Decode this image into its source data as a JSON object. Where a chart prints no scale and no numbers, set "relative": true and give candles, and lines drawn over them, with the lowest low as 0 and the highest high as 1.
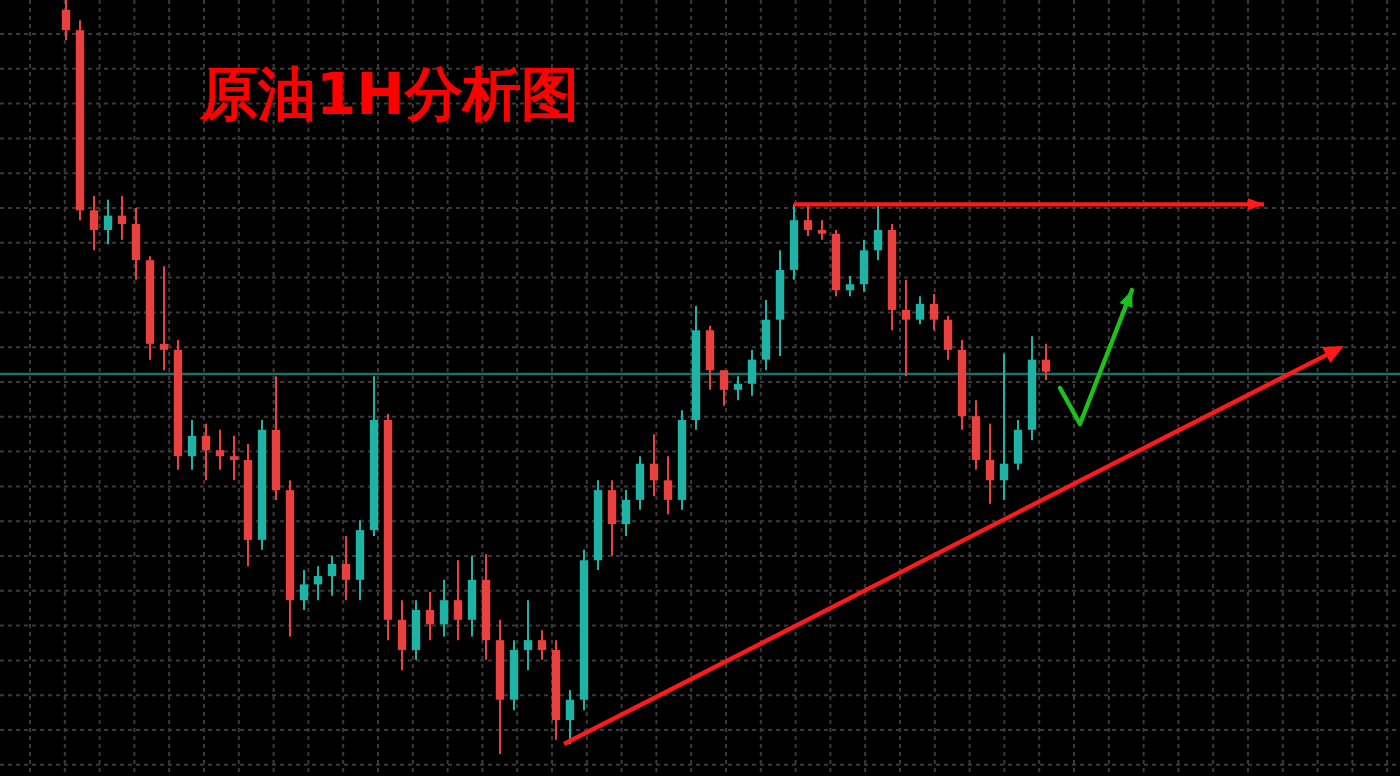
{
  "chart_data": {
    "type": "candlestick",
    "title": "原油1H分析图",
    "relative": true,
    "grid": true,
    "categories": [
      null,
      null,
      null,
      null,
      null,
      null,
      null,
      null,
      null,
      null,
      null,
      null,
      null,
      null,
      null,
      null,
      null,
      null,
      null,
      null,
      null,
      null,
      null,
      null,
      null,
      null,
      null,
      null,
      null,
      null,
      null,
      null,
      null,
      null,
      null,
      null,
      null,
      null,
      null,
      null,
      null,
      null,
      null,
      null,
      null,
      null,
      null,
      null,
      null,
      null,
      null,
      null,
      null,
      null,
      null,
      null,
      null,
      null,
      null,
      null,
      null,
      null,
      null,
      null,
      null,
      null,
      null,
      null,
      null,
      null,
      null
    ],
    "ohlc": [
      [
        0.987,
        1.0,
        0.947,
        0.96
      ],
      [
        0.96,
        0.973,
        0.708,
        0.721
      ],
      [
        0.721,
        0.74,
        0.668,
        0.695
      ],
      [
        0.695,
        0.735,
        0.676,
        0.714
      ],
      [
        0.714,
        0.74,
        0.682,
        0.703
      ],
      [
        0.703,
        0.724,
        0.629,
        0.655
      ],
      [
        0.655,
        0.66,
        0.523,
        0.544
      ],
      [
        0.544,
        0.647,
        0.509,
        0.536
      ],
      [
        0.536,
        0.549,
        0.377,
        0.395
      ],
      [
        0.395,
        0.443,
        0.377,
        0.422
      ],
      [
        0.422,
        0.438,
        0.363,
        0.403
      ],
      [
        0.403,
        0.43,
        0.377,
        0.395
      ],
      [
        0.395,
        0.422,
        0.363,
        0.39
      ],
      [
        0.39,
        0.411,
        0.249,
        0.284
      ],
      [
        0.284,
        0.443,
        0.271,
        0.43
      ],
      [
        0.43,
        0.501,
        0.337,
        0.35
      ],
      [
        0.35,
        0.363,
        0.156,
        0.204
      ],
      [
        0.204,
        0.244,
        0.191,
        0.225
      ],
      [
        0.225,
        0.249,
        0.204,
        0.236
      ],
      [
        0.236,
        0.263,
        0.21,
        0.252
      ],
      [
        0.252,
        0.289,
        0.204,
        0.231
      ],
      [
        0.231,
        0.31,
        0.204,
        0.297
      ],
      [
        0.297,
        0.501,
        0.289,
        0.443
      ],
      [
        0.443,
        0.451,
        0.151,
        0.178
      ],
      [
        0.178,
        0.204,
        0.111,
        0.138
      ],
      [
        0.138,
        0.204,
        0.125,
        0.191
      ],
      [
        0.191,
        0.215,
        0.151,
        0.172
      ],
      [
        0.172,
        0.231,
        0.156,
        0.204
      ],
      [
        0.204,
        0.257,
        0.151,
        0.178
      ],
      [
        0.178,
        0.263,
        0.156,
        0.231
      ],
      [
        0.231,
        0.265,
        0.125,
        0.151
      ],
      [
        0.151,
        0.178,
        0.0,
        0.072
      ],
      [
        0.072,
        0.151,
        0.058,
        0.138
      ],
      [
        0.138,
        0.204,
        0.111,
        0.151
      ],
      [
        0.151,
        0.164,
        0.125,
        0.138
      ],
      [
        0.138,
        0.151,
        0.019,
        0.045
      ],
      [
        0.045,
        0.085,
        0.013,
        0.072
      ],
      [
        0.072,
        0.271,
        0.058,
        0.257
      ],
      [
        0.257,
        0.363,
        0.244,
        0.35
      ],
      [
        0.35,
        0.363,
        0.263,
        0.305
      ],
      [
        0.305,
        0.35,
        0.289,
        0.337
      ],
      [
        0.337,
        0.395,
        0.324,
        0.385
      ],
      [
        0.385,
        0.424,
        0.342,
        0.363
      ],
      [
        0.363,
        0.395,
        0.318,
        0.337
      ],
      [
        0.337,
        0.456,
        0.324,
        0.443
      ],
      [
        0.443,
        0.594,
        0.43,
        0.562
      ],
      [
        0.562,
        0.568,
        0.483,
        0.509
      ],
      [
        0.509,
        0.509,
        0.462,
        0.483
      ],
      [
        0.483,
        0.501,
        0.469,
        0.491
      ],
      [
        0.491,
        0.536,
        0.475,
        0.523
      ],
      [
        0.523,
        0.602,
        0.509,
        0.576
      ],
      [
        0.576,
        0.668,
        0.528,
        0.642
      ],
      [
        0.642,
        0.729,
        0.629,
        0.708
      ],
      [
        0.708,
        0.727,
        0.687,
        0.695
      ],
      [
        0.695,
        0.708,
        0.682,
        0.69
      ],
      [
        0.69,
        0.695,
        0.607,
        0.615
      ],
      [
        0.615,
        0.634,
        0.607,
        0.623
      ],
      [
        0.623,
        0.682,
        0.613,
        0.668
      ],
      [
        0.668,
        0.729,
        0.655,
        0.695
      ],
      [
        0.695,
        0.703,
        0.562,
        0.589
      ],
      [
        0.589,
        0.629,
        0.501,
        0.576
      ],
      [
        0.576,
        0.607,
        0.57,
        0.597
      ],
      [
        0.597,
        0.61,
        0.562,
        0.576
      ],
      [
        0.576,
        0.581,
        0.523,
        0.536
      ],
      [
        0.536,
        0.549,
        0.43,
        0.448
      ],
      [
        0.448,
        0.469,
        0.377,
        0.39
      ],
      [
        0.39,
        0.438,
        0.332,
        0.363
      ],
      [
        0.363,
        0.531,
        0.337,
        0.385
      ],
      [
        0.385,
        0.443,
        0.377,
        0.43
      ],
      [
        0.43,
        0.554,
        0.416,
        0.523
      ],
      [
        0.523,
        0.544,
        0.496,
        0.507
      ]
    ],
    "ref_lines": [
      {
        "axis": "y",
        "value": 0.504,
        "color": "#1f6f6a"
      },
      {
        "axis": "y",
        "value": 0.729,
        "color": "#ff1a1a"
      }
    ]
  }
}
